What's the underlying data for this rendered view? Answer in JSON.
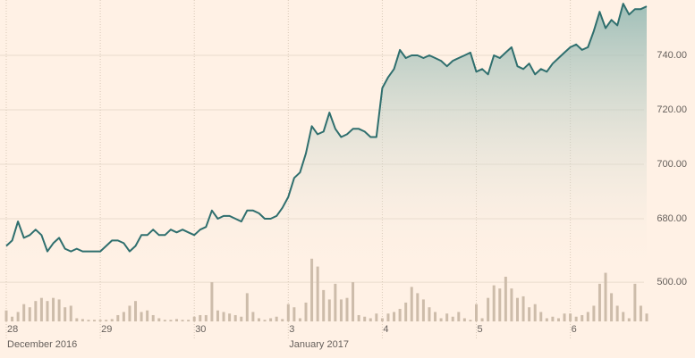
{
  "chart_data": {
    "type": "line",
    "categories": [
      "28",
      null,
      null,
      null,
      null,
      null,
      null,
      null,
      null,
      null,
      null,
      null,
      null,
      null,
      null,
      null,
      "29",
      null,
      null,
      null,
      null,
      null,
      null,
      null,
      null,
      null,
      null,
      null,
      null,
      null,
      null,
      null,
      "30",
      null,
      null,
      null,
      null,
      null,
      null,
      null,
      null,
      null,
      null,
      null,
      null,
      null,
      null,
      null,
      "3",
      null,
      null,
      null,
      null,
      null,
      null,
      null,
      null,
      null,
      null,
      null,
      null,
      null,
      null,
      null,
      "4",
      null,
      null,
      null,
      null,
      null,
      null,
      null,
      null,
      null,
      null,
      null,
      null,
      null,
      null,
      null,
      "5",
      null,
      null,
      null,
      null,
      null,
      null,
      null,
      null,
      null,
      null,
      null,
      null,
      null,
      null,
      null,
      "6",
      null,
      null,
      null,
      null,
      null,
      null,
      null,
      null,
      null,
      null,
      null,
      null,
      null
    ],
    "month_labels": [
      "December 2016",
      null,
      null,
      null,
      null,
      null,
      null,
      null,
      null,
      null,
      null,
      null,
      null,
      null,
      null,
      null,
      null,
      null,
      null,
      null,
      null,
      null,
      null,
      null,
      null,
      null,
      null,
      null,
      null,
      null,
      null,
      null,
      null,
      null,
      null,
      null,
      null,
      null,
      null,
      null,
      null,
      null,
      null,
      null,
      null,
      null,
      null,
      null,
      "January 2017",
      null,
      null,
      null,
      null,
      null,
      null,
      null,
      null,
      null,
      null,
      null,
      null,
      null,
      null,
      null,
      null,
      null,
      null,
      null,
      null,
      null,
      null,
      null,
      null,
      null,
      null,
      null,
      null,
      null,
      null,
      null,
      null,
      null,
      null,
      null,
      null,
      null,
      null,
      null,
      null,
      null,
      null,
      null,
      null,
      null,
      null,
      null,
      null,
      null,
      null,
      null,
      null,
      null,
      null,
      null,
      null,
      null,
      null,
      null,
      null,
      null
    ],
    "series": [
      {
        "color": "#2f6f6e",
        "values": [
          670,
          672,
          679,
          673,
          674,
          676,
          674,
          668,
          671,
          673,
          669,
          668,
          669,
          668,
          668,
          668,
          668,
          670,
          672,
          672,
          671,
          668,
          670,
          674,
          674,
          676,
          674,
          674,
          676,
          675,
          676,
          675,
          674,
          676,
          677,
          683,
          680,
          681,
          681,
          680,
          679,
          683,
          683,
          682,
          680,
          680,
          681,
          684,
          688,
          695,
          697,
          704,
          714,
          711,
          712,
          719,
          713,
          710,
          711,
          713,
          713,
          712,
          710,
          710,
          728,
          732,
          735,
          742,
          739,
          740,
          740,
          739,
          740,
          739,
          738,
          736,
          738,
          739,
          740,
          741,
          734,
          735,
          733,
          740,
          739,
          741,
          743,
          736,
          735,
          737,
          733,
          735,
          734,
          737,
          739,
          741,
          743,
          744,
          742,
          743,
          749,
          756,
          750,
          753,
          751,
          759,
          755,
          757,
          757,
          758
        ]
      }
    ],
    "ylim": [
      660,
      760
    ],
    "yticks": [
      {
        "value": 680,
        "label": "680.00"
      },
      {
        "value": 700,
        "label": "700.00"
      },
      {
        "value": 720,
        "label": "720.00"
      },
      {
        "value": 740,
        "label": "740.00"
      }
    ],
    "volume": {
      "type": "bar",
      "color": "#cdbcaa",
      "ylim": [
        0,
        900
      ],
      "yticks": [
        {
          "value": 500,
          "label": "500.00"
        }
      ],
      "values": [
        140,
        60,
        120,
        220,
        180,
        260,
        300,
        260,
        300,
        280,
        180,
        200,
        40,
        30,
        20,
        20,
        20,
        20,
        30,
        80,
        120,
        200,
        260,
        120,
        140,
        80,
        40,
        20,
        20,
        30,
        20,
        20,
        60,
        80,
        80,
        500,
        140,
        120,
        100,
        80,
        60,
        360,
        120,
        40,
        20,
        40,
        60,
        30,
        220,
        180,
        40,
        240,
        800,
        700,
        400,
        280,
        480,
        280,
        300,
        500,
        80,
        60,
        40,
        100,
        40,
        100,
        120,
        160,
        240,
        440,
        360,
        280,
        180,
        120,
        40,
        100,
        60,
        120,
        40,
        20,
        220,
        40,
        300,
        460,
        420,
        570,
        420,
        300,
        320,
        180,
        220,
        120,
        40,
        60,
        40,
        100,
        100,
        60,
        80,
        120,
        200,
        480,
        620,
        360,
        200,
        120,
        40,
        480,
        200,
        100
      ]
    }
  }
}
